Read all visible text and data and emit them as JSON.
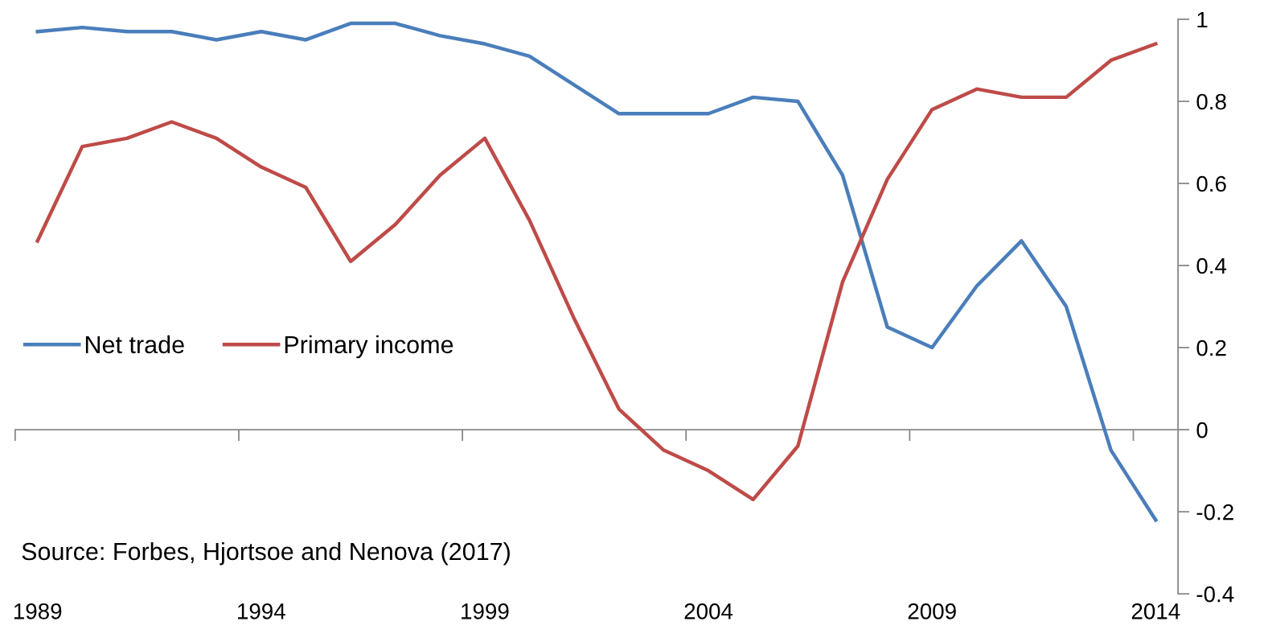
{
  "chart_data": {
    "type": "line",
    "x": [
      1989,
      1990,
      1991,
      1992,
      1993,
      1994,
      1995,
      1996,
      1997,
      1998,
      1999,
      2000,
      2001,
      2002,
      2003,
      2004,
      2005,
      2006,
      2007,
      2008,
      2009,
      2010,
      2011,
      2012,
      2013,
      2014
    ],
    "series": [
      {
        "name": "Net trade",
        "color": "#4a7ebb",
        "values": [
          0.97,
          0.98,
          0.97,
          0.97,
          0.95,
          0.97,
          0.95,
          0.99,
          0.99,
          0.96,
          0.94,
          0.91,
          0.84,
          0.77,
          0.77,
          0.77,
          0.81,
          0.8,
          0.62,
          0.25,
          0.2,
          0.35,
          0.46,
          0.3,
          -0.05,
          -0.22
        ]
      },
      {
        "name": "Primary income",
        "color": "#be4b48",
        "values": [
          0.46,
          0.69,
          0.71,
          0.75,
          0.71,
          0.64,
          0.59,
          0.41,
          0.5,
          0.62,
          0.71,
          0.51,
          0.27,
          0.05,
          -0.05,
          -0.1,
          -0.17,
          -0.04,
          0.36,
          0.61,
          0.78,
          0.83,
          0.81,
          0.81,
          0.9,
          0.94
        ]
      }
    ],
    "xlim": [
      1988.5,
      2014.5
    ],
    "xticks": [
      {
        "value": 1989,
        "label": "1989"
      },
      {
        "value": 1994,
        "label": "1994"
      },
      {
        "value": 1999,
        "label": "1999"
      },
      {
        "value": 2004,
        "label": "2004"
      },
      {
        "value": 2009,
        "label": "2009"
      },
      {
        "value": 2014,
        "label": "2014"
      },
      {
        "value": 1988.5,
        "label": null
      },
      {
        "value": 1993.5,
        "label": null
      },
      {
        "value": 1998.5,
        "label": null
      },
      {
        "value": 2003.5,
        "label": null
      },
      {
        "value": 2008.5,
        "label": null
      },
      {
        "value": 2013.5,
        "label": null
      }
    ],
    "ylim": [
      -0.4,
      1
    ],
    "yticks": [
      -0.4,
      -0.2,
      0,
      0.2,
      0.4,
      0.6,
      0.8,
      1
    ],
    "legend": "left",
    "annotations": [
      "Source: Forbes, Hjortsoe and Nenova (2017)"
    ]
  }
}
